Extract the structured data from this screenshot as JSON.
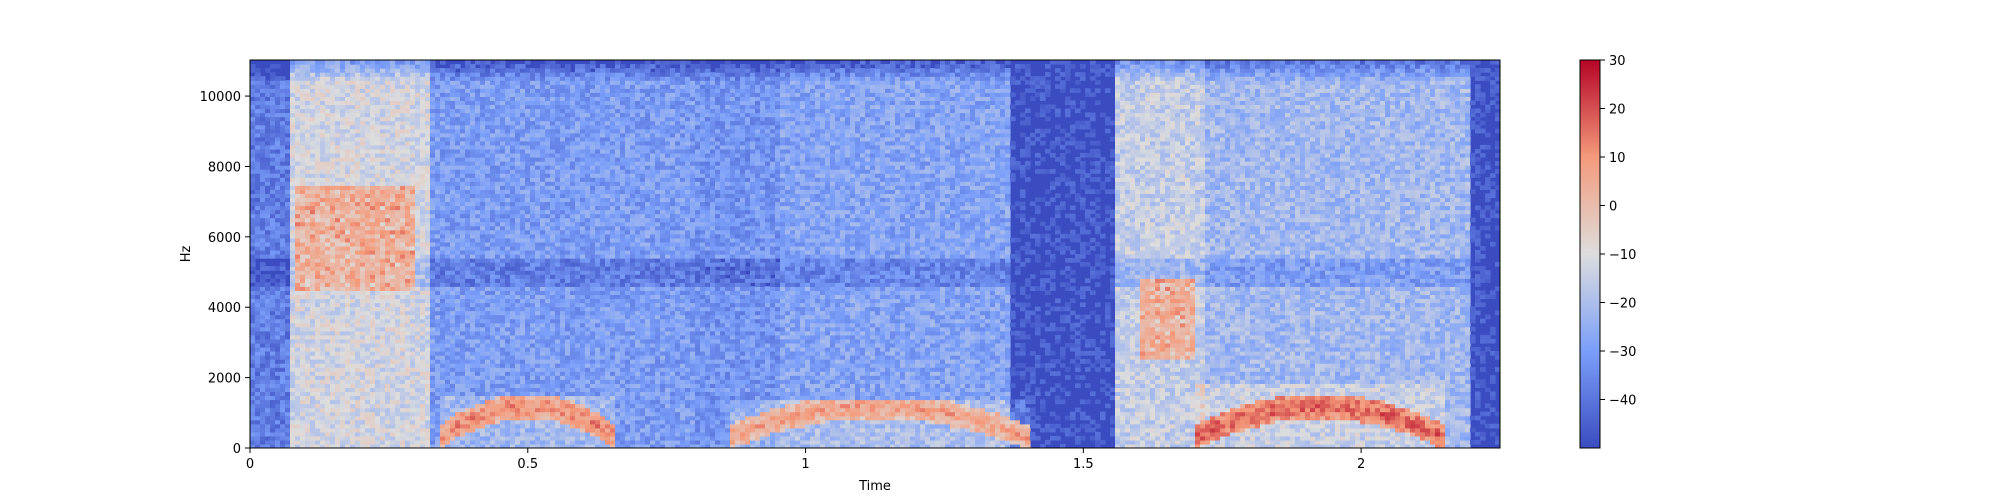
{
  "chart_data": {
    "type": "heatmap",
    "title": "",
    "xlabel": "Time",
    "ylabel": "Hz",
    "xlim": [
      0,
      2.25
    ],
    "ylim": [
      0,
      11025
    ],
    "x_ticks": [
      {
        "value": 0,
        "label": "0"
      },
      {
        "value": 0.5,
        "label": "0.5"
      },
      {
        "value": 1,
        "label": "1"
      },
      {
        "value": 1.5,
        "label": "1.5"
      },
      {
        "value": 2,
        "label": "2"
      }
    ],
    "y_ticks": [
      {
        "value": 0,
        "label": "0"
      },
      {
        "value": 2000,
        "label": "2000"
      },
      {
        "value": 4000,
        "label": "4000"
      },
      {
        "value": 6000,
        "label": "6000"
      },
      {
        "value": 8000,
        "label": "8000"
      },
      {
        "value": 10000,
        "label": "10000"
      }
    ],
    "colorbar": {
      "colormap": "coolwarm",
      "range": [
        -50,
        30
      ],
      "ticks": [
        {
          "value": 30,
          "label": "30"
        },
        {
          "value": 20,
          "label": "20"
        },
        {
          "value": 10,
          "label": "10"
        },
        {
          "value": 0,
          "label": "0"
        },
        {
          "value": -10,
          "label": "−10"
        },
        {
          "value": -20,
          "label": "−20"
        },
        {
          "value": -30,
          "label": "−30"
        },
        {
          "value": -40,
          "label": "−40"
        }
      ]
    },
    "segments": [
      {
        "t_start": 0.0,
        "t_end": 0.07,
        "level_db": -38
      },
      {
        "t_start": 0.07,
        "t_end": 0.32,
        "level_db": -12
      },
      {
        "t_start": 0.32,
        "t_end": 0.8,
        "level_db": -30
      },
      {
        "t_start": 0.8,
        "t_end": 0.95,
        "level_db": -32
      },
      {
        "t_start": 0.95,
        "t_end": 1.37,
        "level_db": -28
      },
      {
        "t_start": 1.37,
        "t_end": 1.56,
        "level_db": -48
      },
      {
        "t_start": 1.56,
        "t_end": 1.72,
        "level_db": -15
      },
      {
        "t_start": 1.72,
        "t_end": 2.2,
        "level_db": -22
      },
      {
        "t_start": 2.2,
        "t_end": 2.25,
        "level_db": -48
      }
    ],
    "harmonic_regions": [
      {
        "t_start": 0.34,
        "t_end": 0.66,
        "f_max": 1500,
        "level_db": 12
      },
      {
        "t_start": 0.86,
        "t_end": 1.4,
        "f_max": 1400,
        "level_db": 8
      },
      {
        "t_start": 1.7,
        "t_end": 2.15,
        "f_max": 1800,
        "level_db": 18
      }
    ],
    "formant_regions": [
      {
        "t_start": 0.08,
        "t_end": 0.3,
        "f_low": 4500,
        "f_high": 7500,
        "level_db": 5
      },
      {
        "t_start": 1.6,
        "t_end": 1.7,
        "f_low": 2500,
        "f_high": 4800,
        "level_db": 5
      }
    ]
  }
}
